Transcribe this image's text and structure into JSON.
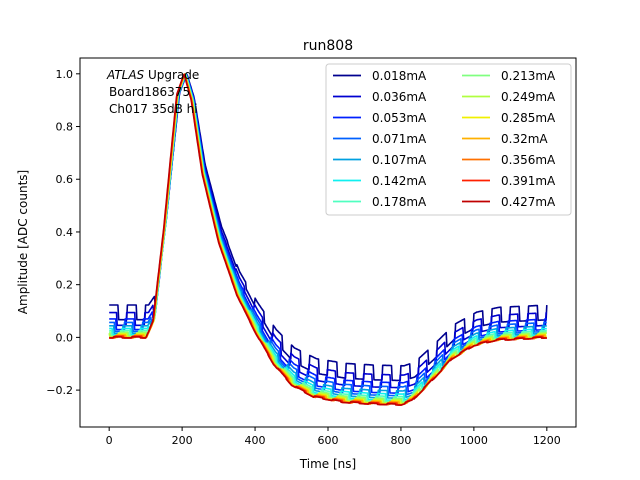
{
  "chart_data": {
    "type": "line",
    "title": "run808",
    "xlabel": "Time [ns]",
    "ylabel": "Amplitude [ADC counts]",
    "xlim": [
      -80,
      1280
    ],
    "ylim": [
      -0.34,
      1.06
    ],
    "xticks": [
      0,
      200,
      400,
      600,
      800,
      1000,
      1200
    ],
    "yticks": [
      -0.2,
      0.0,
      0.2,
      0.4,
      0.6,
      0.8,
      1.0
    ],
    "xtick_labels": [
      "0",
      "200",
      "400",
      "600",
      "800",
      "1000",
      "1200"
    ],
    "ytick_labels": [
      "−0.2",
      "0.0",
      "0.2",
      "0.4",
      "0.6",
      "0.8",
      "1.0"
    ],
    "grid": false,
    "legend_position": "top-right",
    "legend_columns": 2,
    "annotation": {
      "italic": "ATLAS",
      "rest": " Upgrade",
      "line2": "Board186375",
      "line3": "Ch017 35dB hi"
    },
    "shape_points": [
      {
        "t": 0,
        "base": 0.0,
        "noise": 1
      },
      {
        "t": 100,
        "base": 0.0,
        "noise": 1
      },
      {
        "t": 120,
        "base": 0.06,
        "noise": 0.5
      },
      {
        "t": 150,
        "base": 0.42,
        "noise": 0
      },
      {
        "t": 185,
        "base": 0.92,
        "noise": 0
      },
      {
        "t": 205,
        "base": 1.0,
        "noise": 0
      },
      {
        "t": 225,
        "base": 0.9,
        "noise": 0
      },
      {
        "t": 255,
        "base": 0.62,
        "noise": 0
      },
      {
        "t": 300,
        "base": 0.36,
        "noise": 0
      },
      {
        "t": 350,
        "base": 0.16,
        "noise": 0.3
      },
      {
        "t": 400,
        "base": 0.02,
        "noise": 0.6
      },
      {
        "t": 450,
        "base": -0.1,
        "noise": 0.9
      },
      {
        "t": 500,
        "base": -0.18,
        "noise": 1
      },
      {
        "t": 560,
        "base": -0.225,
        "noise": 1
      },
      {
        "t": 640,
        "base": -0.245,
        "noise": 1
      },
      {
        "t": 720,
        "base": -0.252,
        "noise": 1
      },
      {
        "t": 800,
        "base": -0.255,
        "noise": 1
      },
      {
        "t": 830,
        "base": -0.24,
        "noise": 1
      },
      {
        "t": 880,
        "base": -0.17,
        "noise": 1
      },
      {
        "t": 940,
        "base": -0.08,
        "noise": 1
      },
      {
        "t": 1000,
        "base": -0.03,
        "noise": 1
      },
      {
        "t": 1060,
        "base": -0.01,
        "noise": 1
      },
      {
        "t": 1200,
        "base": 0.0,
        "noise": 1
      }
    ],
    "series": [
      {
        "name": "0.018mA",
        "color": "#00008f",
        "offset": 0.095,
        "noise": 0.028
      },
      {
        "name": "0.036mA",
        "color": "#0000d0",
        "offset": 0.07,
        "noise": 0.024
      },
      {
        "name": "0.053mA",
        "color": "#0020ff",
        "offset": 0.05,
        "noise": 0.02
      },
      {
        "name": "0.071mA",
        "color": "#0060ff",
        "offset": 0.04,
        "noise": 0.017
      },
      {
        "name": "0.107mA",
        "color": "#00a0e0",
        "offset": 0.03,
        "noise": 0.014
      },
      {
        "name": "0.142mA",
        "color": "#10f0f0",
        "offset": 0.022,
        "noise": 0.012
      },
      {
        "name": "0.178mA",
        "color": "#50ffc0",
        "offset": 0.016,
        "noise": 0.01
      },
      {
        "name": "0.213mA",
        "color": "#80ff80",
        "offset": 0.012,
        "noise": 0.008
      },
      {
        "name": "0.249mA",
        "color": "#b0ff40",
        "offset": 0.009,
        "noise": 0.007
      },
      {
        "name": "0.285mA",
        "color": "#f0f000",
        "offset": 0.006,
        "noise": 0.006
      },
      {
        "name": "0.32mA",
        "color": "#ffb000",
        "offset": 0.004,
        "noise": 0.005
      },
      {
        "name": "0.356mA",
        "color": "#ff7000",
        "offset": 0.002,
        "noise": 0.004
      },
      {
        "name": "0.391mA",
        "color": "#ff2000",
        "offset": 0.001,
        "noise": 0.003
      },
      {
        "name": "0.427mA",
        "color": "#c00000",
        "offset": 0.0,
        "noise": 0.002
      }
    ]
  }
}
